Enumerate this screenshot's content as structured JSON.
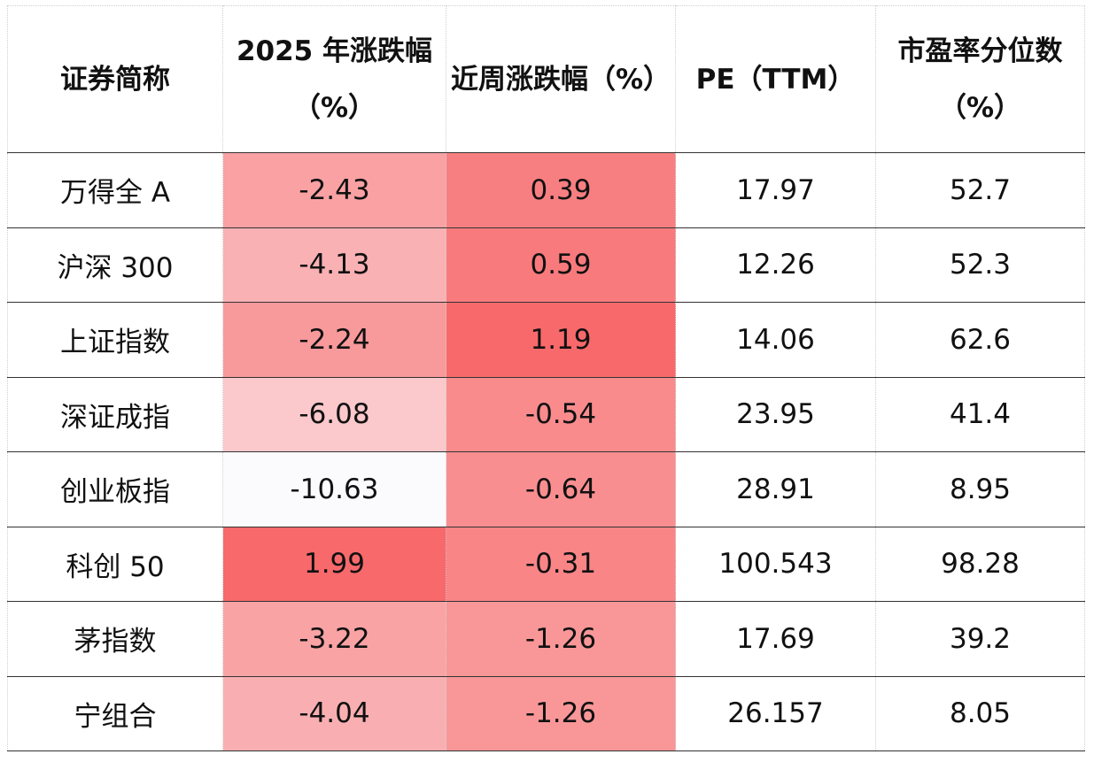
{
  "table": {
    "headers": {
      "name": "证券简称",
      "ytd_line1": "2025 年涨跌幅",
      "ytd_line2": "（%）",
      "week": "近周涨跌幅（%）",
      "pe": "PE（TTM）",
      "pct_line1": "市盈率分位数",
      "pct_line2": "（%）"
    },
    "rows": [
      {
        "name": "万得全 A",
        "ytd": "-2.43",
        "week": "0.39",
        "pe": "17.97",
        "pct": "52.7"
      },
      {
        "name": "沪深 300",
        "ytd": "-4.13",
        "week": "0.59",
        "pe": "12.26",
        "pct": "52.3"
      },
      {
        "name": "上证指数",
        "ytd": "-2.24",
        "week": "1.19",
        "pe": "14.06",
        "pct": "62.6"
      },
      {
        "name": "深证成指",
        "ytd": "-6.08",
        "week": "-0.54",
        "pe": "23.95",
        "pct": "41.4"
      },
      {
        "name": "创业板指",
        "ytd": "-10.63",
        "week": "-0.64",
        "pe": "28.91",
        "pct": "8.95"
      },
      {
        "name": "科创 50",
        "ytd": "1.99",
        "week": "-0.31",
        "pe": "100.543",
        "pct": "98.28"
      },
      {
        "name": "茅指数",
        "ytd": "-3.22",
        "week": "-1.26",
        "pe": "17.69",
        "pct": "39.2"
      },
      {
        "name": "宁组合",
        "ytd": "-4.04",
        "week": "-1.26",
        "pe": "26.157",
        "pct": "8.05"
      }
    ],
    "heat_colors": {
      "ytd": [
        "#f9a1a3",
        "#f9b1b3",
        "#f8999b",
        "#fbc8cb",
        "#fbfbfe",
        "#f8696b",
        "#f9a3a5",
        "#f9afb1"
      ],
      "week": [
        "#f87f81",
        "#f87a7c",
        "#f8696b",
        "#f98b8d",
        "#f98e90",
        "#f98587",
        "#f99798",
        "#f99798"
      ]
    }
  }
}
